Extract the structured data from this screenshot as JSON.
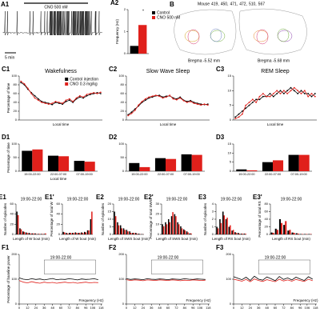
{
  "A1": {
    "label": "A1",
    "bar_text": "CNO 500 nM",
    "scale_text": "5 min"
  },
  "B": {
    "label": "B",
    "mouse_title": "Mouse",
    "mice": [
      {
        "label": "419,",
        "color": "#d4a017"
      },
      {
        "label": "450,",
        "color": "#e8862a"
      },
      {
        "label": "471,",
        "color": "#6fae3b"
      },
      {
        "label": "472,",
        "color": "#6a7fc1"
      },
      {
        "label": "510,",
        "color": "#8e44ad"
      },
      {
        "label": "567",
        "color": "#d6336c"
      }
    ],
    "left_caption": "Bregma -5.52 mm",
    "right_caption": "Bregma -5.68 mm"
  },
  "chart_data": [
    {
      "type": "bar",
      "label": "A2",
      "ylabel": "Frequency (Hz)",
      "categories": [
        null
      ],
      "ylim": [
        0,
        2
      ],
      "yticks": [
        0,
        1,
        2
      ],
      "legend": true,
      "annotations": [
        "*"
      ],
      "series": [
        {
          "name": "Control",
          "color": "#000000",
          "values": [
            0.35
          ]
        },
        {
          "name": "CNO 500 nM",
          "color": "#e0201b",
          "values": [
            1.3
          ]
        }
      ]
    },
    {
      "type": "line",
      "label": "C1",
      "title": "Wakefulness",
      "ylabel": "Percentage of time",
      "xlabel": "Local time",
      "ylim": [
        0,
        100
      ],
      "yticks": [
        0,
        20,
        40,
        60,
        80,
        100
      ],
      "legend": true,
      "categories": [
        null,
        null,
        null,
        null,
        null,
        null,
        null,
        null,
        null,
        null,
        null,
        null,
        null,
        null,
        null,
        null,
        null,
        null,
        null,
        null,
        null,
        null,
        null,
        null
      ],
      "series": [
        {
          "name": "Control injection",
          "color": "#000000",
          "values": [
            85,
            80,
            70,
            62,
            55,
            48,
            42,
            40,
            38,
            35,
            40,
            38,
            36,
            42,
            45,
            40,
            48,
            52,
            50,
            55,
            58,
            60,
            62,
            60
          ]
        },
        {
          "name": "CNO 0.3 mg/kg",
          "color": "#e0201b",
          "values": [
            88,
            82,
            72,
            60,
            50,
            45,
            40,
            38,
            36,
            38,
            42,
            40,
            38,
            45,
            48,
            42,
            50,
            55,
            52,
            58,
            60,
            62,
            60,
            63
          ]
        }
      ]
    },
    {
      "type": "line",
      "label": "C2",
      "title": "Slow Wave Sleep",
      "xlabel": "Local time",
      "ylim": [
        0,
        100
      ],
      "yticks": [
        0,
        20,
        40,
        60,
        80,
        100
      ],
      "categories": [
        null,
        null,
        null,
        null,
        null,
        null,
        null,
        null,
        null,
        null,
        null,
        null,
        null,
        null,
        null,
        null,
        null,
        null,
        null,
        null,
        null,
        null,
        null,
        null
      ],
      "series": [
        {
          "color": "#000000",
          "values": [
            12,
            18,
            25,
            32,
            40,
            45,
            50,
            52,
            55,
            56,
            52,
            54,
            55,
            50,
            48,
            52,
            45,
            42,
            44,
            40,
            38,
            36,
            35,
            36
          ]
        },
        {
          "color": "#e0201b",
          "values": [
            10,
            15,
            22,
            34,
            42,
            48,
            52,
            54,
            56,
            54,
            50,
            52,
            56,
            48,
            46,
            50,
            44,
            40,
            42,
            38,
            36,
            34,
            36,
            34
          ]
        }
      ]
    },
    {
      "type": "line",
      "label": "C3",
      "title": "REM Sleep",
      "xlabel": "Local time",
      "ylim": [
        0,
        15
      ],
      "yticks": [
        0,
        5,
        10,
        15
      ],
      "categories": [
        null,
        null,
        null,
        null,
        null,
        null,
        null,
        null,
        null,
        null,
        null,
        null,
        null,
        null,
        null,
        null,
        null,
        null,
        null,
        null,
        null,
        null,
        null,
        null
      ],
      "series": [
        {
          "color": "#000000",
          "values": [
            1,
            2,
            3,
            4,
            5,
            6,
            7,
            7,
            8,
            8,
            9,
            8,
            9,
            10,
            9,
            10,
            11,
            10,
            9,
            10,
            9,
            9,
            8,
            9
          ]
        },
        {
          "color": "#e0201b",
          "values": [
            0.5,
            1,
            2,
            5,
            6,
            7,
            6,
            8,
            9,
            8,
            8,
            9,
            10,
            9,
            10,
            9,
            10,
            11,
            10,
            9,
            10,
            8,
            9,
            8
          ]
        }
      ]
    },
    {
      "type": "bar",
      "label": "D1",
      "ylabel": "Percentage of time",
      "xlabel": "Local time",
      "ylim": [
        0,
        100
      ],
      "yticks": [
        0,
        50,
        100
      ],
      "categories": [
        "19:00-22:00",
        "22:00-07:00",
        "07:00-19:00"
      ],
      "series": [
        {
          "color": "#000000",
          "values": [
            75,
            57,
            38
          ]
        },
        {
          "color": "#e0201b",
          "values": [
            80,
            55,
            35
          ]
        }
      ]
    },
    {
      "type": "bar",
      "label": "D2",
      "ylim": [
        0,
        100
      ],
      "yticks": [
        0,
        50,
        100
      ],
      "categories": [
        "19:00-22:00",
        "22:00-07:00",
        "07:00-19:00"
      ],
      "series": [
        {
          "color": "#000000",
          "values": [
            30,
            48,
            62
          ]
        },
        {
          "color": "#e0201b",
          "values": [
            15,
            45,
            60
          ]
        }
      ]
    },
    {
      "type": "bar",
      "label": "D3",
      "ylim": [
        0,
        15
      ],
      "yticks": [
        0,
        5,
        10,
        15
      ],
      "categories": [
        "19:00-22:00",
        "22:00-07:00",
        "07:00-19:00"
      ],
      "series": [
        {
          "color": "#000000",
          "values": [
            1,
            5,
            9
          ]
        },
        {
          "color": "#e0201b",
          "values": [
            0.5,
            6,
            9
          ]
        }
      ]
    },
    {
      "type": "bar",
      "label": "E1",
      "title": "19:00-22:00",
      "ylabel": "Number of episodes",
      "xlabel": "Length of W bout (min)",
      "ylim": [
        0,
        60
      ],
      "yticks": [
        0,
        20,
        40,
        60
      ],
      "categories": [
        null,
        null,
        null,
        null,
        null,
        null,
        null,
        null,
        null,
        null
      ],
      "series": [
        {
          "color": "#000000",
          "values": [
            45,
            12,
            6,
            4,
            3,
            2,
            2,
            1,
            1,
            1
          ]
        },
        {
          "color": "#e0201b",
          "values": [
            38,
            10,
            5,
            3,
            2,
            2,
            1,
            1,
            1,
            2
          ]
        }
      ]
    },
    {
      "type": "bar",
      "label": "E1'",
      "title": "19:00-22:00",
      "ylabel": "Percentage of total W",
      "xlabel": "Length of W bout (min)",
      "ylim": [
        0,
        60
      ],
      "yticks": [
        0,
        20,
        40,
        60
      ],
      "categories": [
        null,
        null,
        null,
        null,
        null,
        null,
        null,
        null,
        null,
        null
      ],
      "series": [
        {
          "color": "#000000",
          "values": [
            5,
            3,
            3,
            3,
            4,
            3,
            4,
            5,
            8,
            30
          ]
        },
        {
          "color": "#e0201b",
          "values": [
            4,
            2,
            3,
            3,
            3,
            3,
            3,
            4,
            8,
            45
          ]
        }
      ]
    },
    {
      "type": "bar",
      "label": "E2",
      "title": "19:00-22:00",
      "ylabel": "Number of episodes",
      "xlabel": "Length of SWS bout (min)",
      "ylim": [
        0,
        20
      ],
      "yticks": [
        0,
        5,
        10,
        15,
        20
      ],
      "categories": [
        null,
        null,
        null,
        null,
        null,
        null,
        null,
        null,
        null,
        null
      ],
      "series": [
        {
          "color": "#000000",
          "values": [
            15,
            8,
            6,
            4,
            3,
            2,
            1,
            1,
            0.5,
            0.2
          ]
        },
        {
          "color": "#e0201b",
          "values": [
            12,
            6,
            4,
            3,
            2,
            1,
            1,
            0.5,
            0.2,
            0.1
          ]
        }
      ]
    },
    {
      "type": "bar",
      "label": "E2'",
      "title": "19:00-22:00",
      "ylabel": "Percentage of total SWS",
      "xlabel": "Length of SWS bout (min)",
      "ylim": [
        0,
        30
      ],
      "yticks": [
        0,
        10,
        20,
        30
      ],
      "categories": [
        null,
        null,
        null,
        null,
        null,
        null,
        null,
        null,
        null,
        null
      ],
      "series": [
        {
          "color": "#000000",
          "values": [
            10,
            12,
            15,
            18,
            20,
            12,
            8,
            5,
            3,
            1
          ]
        },
        {
          "color": "#e0201b",
          "values": [
            8,
            10,
            12,
            22,
            18,
            10,
            6,
            4,
            2,
            1
          ]
        }
      ]
    },
    {
      "type": "bar",
      "label": "E3",
      "title": "19:00-22:00",
      "ylabel": "Number of episodes",
      "xlabel": "Length of RS bout (min)",
      "ylim": [
        0,
        4
      ],
      "yticks": [
        0,
        1,
        2,
        3,
        4
      ],
      "categories": [
        null,
        null,
        null,
        null,
        null,
        null,
        null,
        null,
        null,
        null
      ],
      "series": [
        {
          "color": "#000000",
          "values": [
            1,
            2,
            3,
            2,
            1,
            0.5,
            0.3,
            0.2,
            0.1,
            0.1
          ]
        },
        {
          "color": "#e0201b",
          "values": [
            0.8,
            1.5,
            2.5,
            2.2,
            1.2,
            0.6,
            0.2,
            0.1,
            0.1,
            0.1
          ]
        }
      ]
    },
    {
      "type": "bar",
      "label": "E3'",
      "title": "19:00-22:00",
      "ylabel": "Percentage of total RS",
      "xlabel": "Length of RS bout (min)",
      "ylim": [
        0,
        80
      ],
      "yticks": [
        0,
        20,
        40,
        60,
        80
      ],
      "categories": [
        null,
        null,
        null,
        null,
        null,
        null,
        null,
        null,
        null,
        null
      ],
      "series": [
        {
          "color": "#000000",
          "values": [
            5,
            15,
            40,
            25,
            10,
            5,
            3,
            1,
            1,
            1
          ]
        },
        {
          "color": "#e0201b",
          "values": [
            4,
            12,
            30,
            35,
            12,
            4,
            2,
            1,
            1,
            1
          ]
        }
      ]
    },
    {
      "type": "line",
      "label": "F1",
      "title": "19:00-22:00",
      "ylabel": "Percentage of baseline power",
      "xlabel": "Frequency (Hz)",
      "xlim": [
        0,
        120
      ],
      "ylim": [
        0,
        200
      ],
      "yticks": [
        0,
        100,
        200
      ],
      "xticks": [
        0,
        12,
        24,
        36,
        48,
        60,
        72,
        84,
        96,
        106,
        118
      ],
      "x": [
        0,
        6,
        12,
        18,
        24,
        30,
        36,
        42,
        48,
        54,
        60,
        66,
        72,
        78,
        84,
        90,
        96,
        102,
        108,
        114
      ],
      "series": [
        {
          "color": "#000000",
          "values": [
            105,
            100,
            98,
            102,
            99,
            101,
            97,
            100,
            103,
            98,
            100,
            99,
            102,
            100,
            97,
            101,
            99,
            100,
            102,
            98
          ]
        },
        {
          "color": "#e0201b",
          "values": [
            95,
            88,
            85,
            90,
            86,
            84,
            88,
            85,
            87,
            84,
            86,
            88,
            85,
            87,
            84,
            86,
            88,
            85,
            87,
            86
          ]
        }
      ]
    },
    {
      "type": "line",
      "label": "F2",
      "title": "19:00-22:00",
      "xlabel": "Frequency (Hz)",
      "xlim": [
        0,
        120
      ],
      "ylim": [
        0,
        200
      ],
      "yticks": [
        0,
        100,
        200
      ],
      "xticks": [
        0,
        12,
        24,
        36,
        48,
        60,
        72,
        84,
        96,
        106,
        118
      ],
      "x": [
        0,
        6,
        12,
        18,
        24,
        30,
        36,
        42,
        48,
        54,
        60,
        66,
        72,
        78,
        84,
        90,
        96,
        102,
        108,
        114
      ],
      "series": [
        {
          "color": "#000000",
          "values": [
            102,
            99,
            101,
            100,
            98,
            102,
            100,
            99,
            101,
            100,
            98,
            101,
            100,
            99,
            102,
            100,
            99,
            101,
            100,
            99
          ]
        },
        {
          "color": "#e0201b",
          "values": [
            98,
            95,
            97,
            96,
            94,
            97,
            96,
            95,
            97,
            96,
            95,
            97,
            96,
            94,
            96,
            95,
            97,
            96,
            95,
            96
          ]
        }
      ]
    },
    {
      "type": "line",
      "label": "F3",
      "title": "19:00-22:00",
      "xlabel": "Frequency (Hz)",
      "xlim": [
        0,
        120
      ],
      "ylim": [
        0,
        200
      ],
      "yticks": [
        0,
        100,
        200
      ],
      "xticks": [
        0,
        12,
        24,
        36,
        48,
        60,
        72,
        84,
        96,
        106,
        118
      ],
      "x": [
        0,
        6,
        12,
        18,
        24,
        30,
        36,
        42,
        48,
        54,
        60,
        66,
        72,
        78,
        84,
        90,
        96,
        102,
        108,
        114
      ],
      "series": [
        {
          "color": "#000000",
          "values": [
            110,
            104,
            98,
            108,
            95,
            112,
            100,
            96,
            109,
            102,
            94,
            111,
            99,
            105,
            97,
            108,
            101,
            95,
            110,
            100
          ]
        },
        {
          "color": "#e0201b",
          "values": [
            100,
            96,
            92,
            99,
            90,
            101,
            95,
            91,
            98,
            94,
            90,
            100,
            93,
            97,
            92,
            99,
            95,
            91,
            100,
            94
          ]
        }
      ]
    }
  ]
}
